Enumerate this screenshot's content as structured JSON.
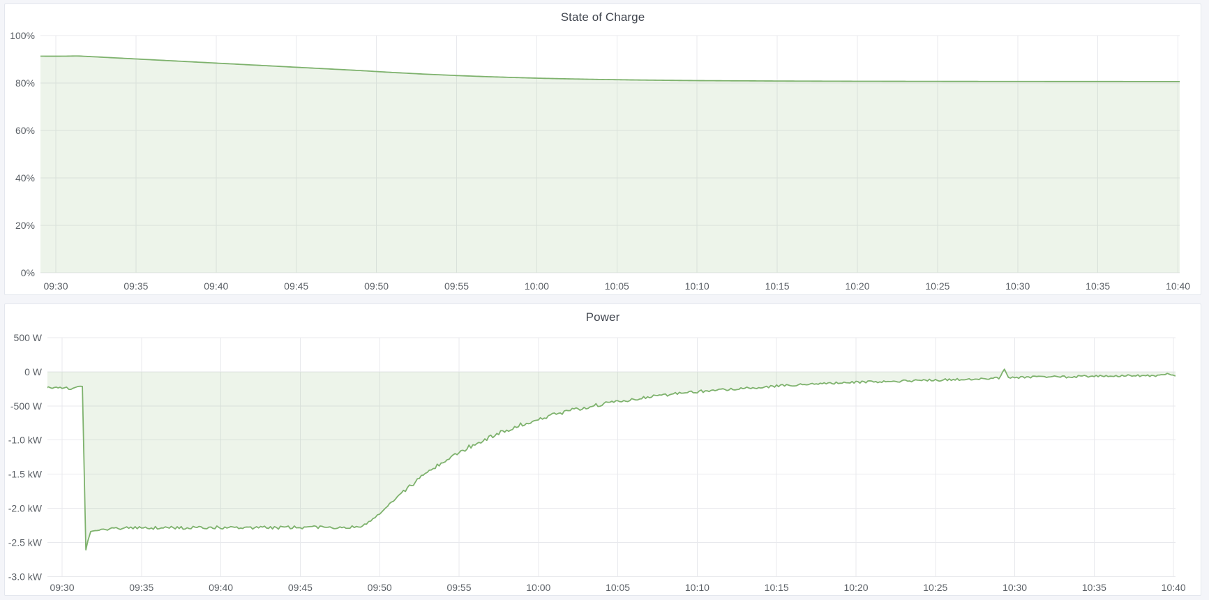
{
  "page": {
    "background": "#f4f5f9",
    "panel_background": "#ffffff",
    "panel_border": "#e4e7ee"
  },
  "panels": [
    {
      "title": "State of Charge"
    },
    {
      "title": "Power"
    }
  ],
  "chart_data": [
    {
      "type": "area",
      "title": "State of Charge",
      "series_name": "State of Charge",
      "unit": "%",
      "color": "#7eb26d",
      "fill_opacity": 0.14,
      "grid": true,
      "legend": "none",
      "baseline_value": 0,
      "y_range": [
        0,
        100
      ],
      "y_tick_labels": [
        "100%",
        "80%",
        "60%",
        "40%",
        "20%",
        "0%"
      ],
      "y_tick_values": [
        100,
        80,
        60,
        40,
        20,
        0
      ],
      "x_tick_labels": [
        "09:30",
        "09:35",
        "09:40",
        "09:45",
        "09:50",
        "09:55",
        "10:00",
        "10:05",
        "10:10",
        "10:15",
        "10:20",
        "10:25",
        "10:30",
        "10:35",
        "10:40"
      ],
      "x_tick_minutes": [
        0,
        5,
        10,
        15,
        20,
        25,
        30,
        35,
        40,
        45,
        50,
        55,
        60,
        65,
        70
      ],
      "points": [
        [
          -1,
          91.32
        ],
        [
          0,
          91.3
        ],
        [
          0.5,
          91.32
        ],
        [
          0.9,
          91.35
        ],
        [
          1.2,
          91.4
        ],
        [
          1.45,
          91.38
        ],
        [
          2,
          91.2
        ],
        [
          3,
          90.85
        ],
        [
          4,
          90.5
        ],
        [
          5,
          90.15
        ],
        [
          6,
          89.8
        ],
        [
          7,
          89.45
        ],
        [
          8,
          89.1
        ],
        [
          9,
          88.75
        ],
        [
          10,
          88.4
        ],
        [
          11,
          88.05
        ],
        [
          12,
          87.7
        ],
        [
          13,
          87.35
        ],
        [
          14,
          87.0
        ],
        [
          15,
          86.65
        ],
        [
          16,
          86.3
        ],
        [
          17,
          85.95
        ],
        [
          18,
          85.6
        ],
        [
          19,
          85.25
        ],
        [
          20,
          84.85
        ],
        [
          21,
          84.45
        ],
        [
          22,
          84.1
        ],
        [
          23,
          83.75
        ],
        [
          24,
          83.45
        ],
        [
          25,
          83.15
        ],
        [
          26,
          82.9
        ],
        [
          27,
          82.65
        ],
        [
          28,
          82.45
        ],
        [
          29,
          82.25
        ],
        [
          30,
          82.05
        ],
        [
          31,
          81.9
        ],
        [
          32,
          81.75
        ],
        [
          33,
          81.62
        ],
        [
          34,
          81.5
        ],
        [
          35,
          81.4
        ],
        [
          36,
          81.3
        ],
        [
          37,
          81.22
        ],
        [
          38,
          81.15
        ],
        [
          39,
          81.08
        ],
        [
          40,
          81.02
        ],
        [
          42,
          80.95
        ],
        [
          44,
          80.88
        ],
        [
          46,
          80.82
        ],
        [
          48,
          80.78
        ],
        [
          50,
          80.74
        ],
        [
          52,
          80.72
        ],
        [
          54,
          80.7
        ],
        [
          56,
          80.68
        ],
        [
          58,
          80.67
        ],
        [
          60,
          80.66
        ],
        [
          62,
          80.65
        ],
        [
          64,
          80.64
        ],
        [
          66,
          80.64
        ],
        [
          68,
          80.63
        ],
        [
          70.2,
          80.63
        ]
      ]
    },
    {
      "type": "area",
      "title": "Power",
      "series_name": "Power",
      "unit": "W",
      "color": "#7eb26d",
      "fill_opacity": 0.14,
      "grid": true,
      "legend": "none",
      "baseline_value": 0,
      "y_range": [
        -3000,
        500
      ],
      "y_tick_labels": [
        "500 W",
        "0 W",
        "-500 W",
        "-1.0 kW",
        "-1.5 kW",
        "-2.0 kW",
        "-2.5 kW",
        "-3.0 kW"
      ],
      "y_tick_values": [
        500,
        0,
        -500,
        -1000,
        -1500,
        -2000,
        -2500,
        -3000
      ],
      "x_tick_labels": [
        "09:30",
        "09:35",
        "09:40",
        "09:45",
        "09:50",
        "09:55",
        "10:00",
        "10:05",
        "10:10",
        "10:15",
        "10:20",
        "10:25",
        "10:30",
        "10:35",
        "10:40"
      ],
      "x_tick_minutes": [
        0,
        5,
        10,
        15,
        20,
        25,
        30,
        35,
        40,
        45,
        50,
        55,
        60,
        65,
        70
      ],
      "points": [
        [
          -1,
          -225,
          22
        ],
        [
          0,
          -240,
          22
        ],
        [
          0.7,
          -250,
          22
        ],
        [
          1.0,
          -230,
          18
        ],
        [
          1.15,
          -205,
          8
        ],
        [
          1.28,
          -215,
          0
        ],
        [
          1.5,
          -2610,
          0
        ],
        [
          1.62,
          -2480,
          0
        ],
        [
          1.8,
          -2340,
          8
        ],
        [
          2.2,
          -2325,
          15
        ],
        [
          3,
          -2300,
          18
        ],
        [
          3.8,
          -2290,
          20
        ],
        [
          5,
          -2285,
          22
        ],
        [
          6,
          -2290,
          22
        ],
        [
          7,
          -2285,
          25
        ],
        [
          8,
          -2290,
          25
        ],
        [
          9,
          -2285,
          25
        ],
        [
          10,
          -2285,
          25
        ],
        [
          11,
          -2280,
          25
        ],
        [
          12,
          -2285,
          25
        ],
        [
          13,
          -2280,
          25
        ],
        [
          14,
          -2285,
          25
        ],
        [
          15,
          -2280,
          22
        ],
        [
          16,
          -2280,
          22
        ],
        [
          17,
          -2278,
          22
        ],
        [
          18,
          -2275,
          20
        ],
        [
          18.8,
          -2270,
          15
        ],
        [
          19.3,
          -2210,
          15
        ],
        [
          20,
          -2070,
          20
        ],
        [
          21,
          -1860,
          25
        ],
        [
          22,
          -1660,
          28
        ],
        [
          23,
          -1480,
          30
        ],
        [
          24,
          -1320,
          30
        ],
        [
          25,
          -1180,
          32
        ],
        [
          26,
          -1060,
          32
        ],
        [
          27,
          -950,
          32
        ],
        [
          28,
          -855,
          30
        ],
        [
          29,
          -770,
          30
        ],
        [
          30,
          -695,
          30
        ],
        [
          31,
          -630,
          28
        ],
        [
          32,
          -570,
          28
        ],
        [
          33,
          -520,
          26
        ],
        [
          34,
          -475,
          26
        ],
        [
          35,
          -435,
          24
        ],
        [
          36,
          -400,
          24
        ],
        [
          37,
          -370,
          22
        ],
        [
          38,
          -340,
          22
        ],
        [
          39,
          -315,
          20
        ],
        [
          40,
          -292,
          20
        ],
        [
          41,
          -272,
          20
        ],
        [
          42,
          -255,
          18
        ],
        [
          43,
          -240,
          18
        ],
        [
          44,
          -225,
          18
        ],
        [
          45,
          -210,
          18
        ],
        [
          46,
          -196,
          18
        ],
        [
          47,
          -184,
          16
        ],
        [
          48,
          -173,
          16
        ],
        [
          49,
          -163,
          16
        ],
        [
          50,
          -154,
          16
        ],
        [
          51,
          -147,
          16
        ],
        [
          52,
          -141,
          16
        ],
        [
          53,
          -135,
          16
        ],
        [
          54,
          -129,
          16
        ],
        [
          55,
          -122,
          16
        ],
        [
          56,
          -115,
          16
        ],
        [
          57,
          -108,
          16
        ],
        [
          58,
          -100,
          16
        ],
        [
          59,
          -93,
          14
        ],
        [
          59.35,
          40,
          5
        ],
        [
          59.6,
          -95,
          12
        ],
        [
          60,
          -85,
          16
        ],
        [
          61,
          -78,
          16
        ],
        [
          62,
          -72,
          16
        ],
        [
          63,
          -76,
          16
        ],
        [
          64,
          -69,
          16
        ],
        [
          65,
          -63,
          16
        ],
        [
          66,
          -67,
          16
        ],
        [
          67,
          -60,
          16
        ],
        [
          68,
          -55,
          14
        ],
        [
          69,
          -58,
          14
        ],
        [
          69.6,
          -30,
          10
        ],
        [
          70.2,
          -60,
          4
        ]
      ]
    }
  ]
}
